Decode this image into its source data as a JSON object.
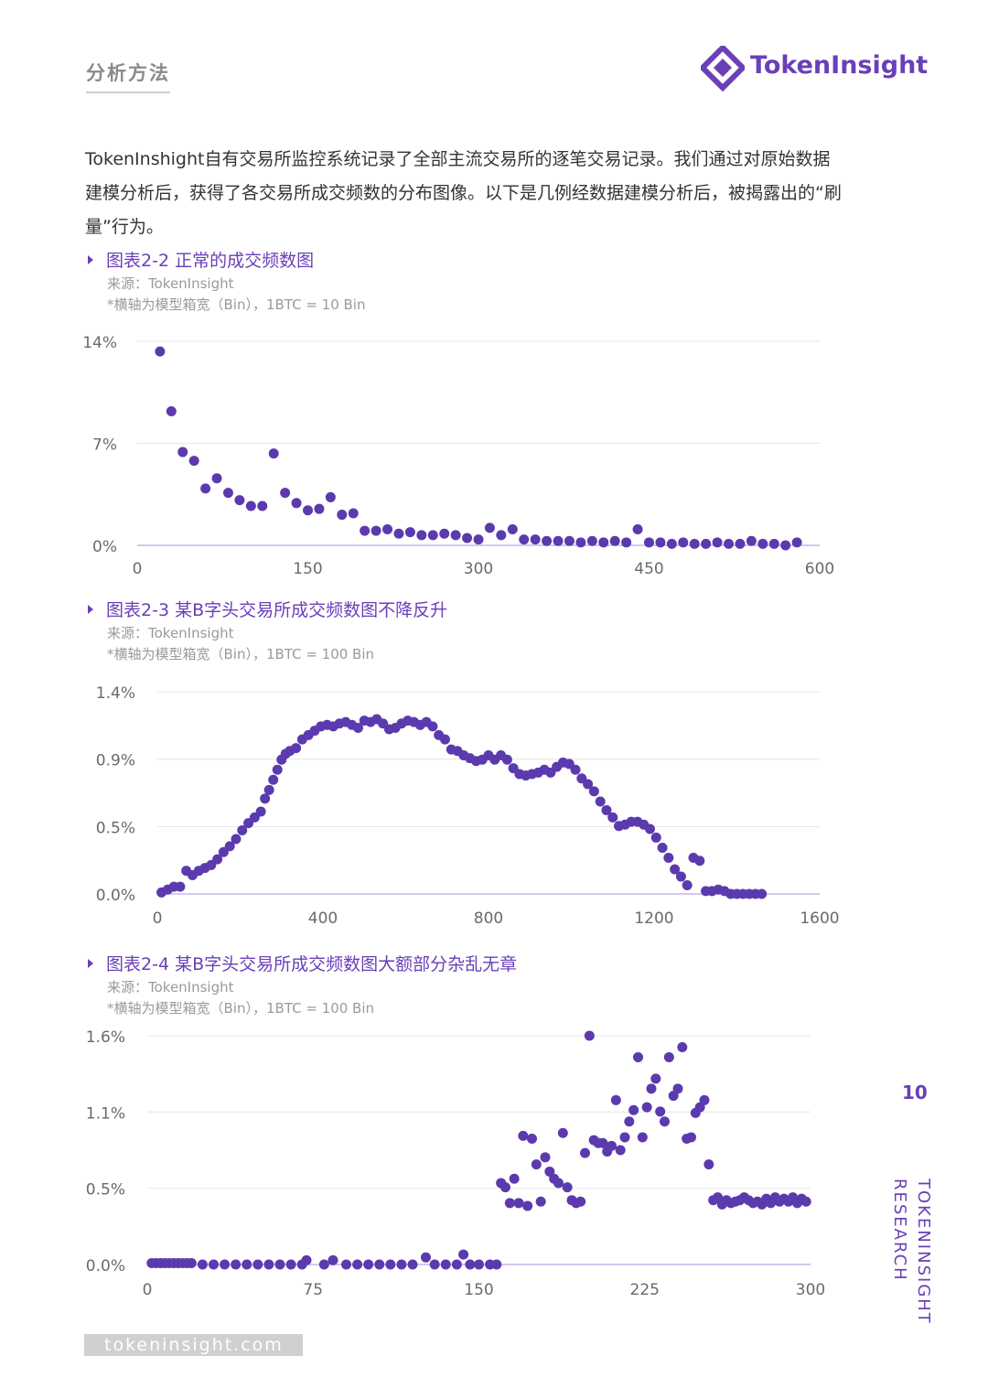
{
  "header": {
    "section_title": "分析方法",
    "logo_text": "TokenInsight",
    "logo_icon": "tokeninsight-diamond-logo-icon"
  },
  "intro_text": "TokenInshight自有交易所监控系统记录了全部主流交易所的逐笔交易记录。我们通过对原始数据建模分析后，获得了各交易所成交频数的分布图像。以下是几例经数据建模分析后，被揭露出的“刷量”行为。",
  "figures": [
    {
      "title": "图表2-2 正常的成交频数图",
      "source": "来源：TokenInsight",
      "note": "*横轴为模型箱宽（Bin），1BTC = 10 Bin"
    },
    {
      "title": "图表2-3 某B字头交易所成交频数图不降反升",
      "source": "来源：TokenInsight",
      "note": "*横轴为模型箱宽（Bin），1BTC = 100 Bin"
    },
    {
      "title": "图表2-4 某B字头交易所成交频数图大额部分杂乱无章",
      "source": "来源：TokenInsight",
      "note": "*横轴为模型箱宽（Bin），1BTC = 100 Bin"
    }
  ],
  "colors": {
    "point": "#5b3aae",
    "accent": "#6a3fb8",
    "grid": "#e6e6e6",
    "axis": "#b9a8e8"
  },
  "chart_data": [
    {
      "type": "scatter",
      "xlim": [
        0,
        600
      ],
      "ylim": [
        0,
        14
      ],
      "xticks": [
        "0",
        "150",
        "300",
        "450",
        "600"
      ],
      "xtick_values": [
        0,
        150,
        300,
        450,
        600
      ],
      "yticks": [
        "0%",
        "7%",
        "14%"
      ],
      "ytick_values": [
        0,
        7,
        14
      ],
      "grid": true,
      "points": [
        [
          20,
          13.3
        ],
        [
          30,
          9.2
        ],
        [
          40,
          6.4
        ],
        [
          50,
          5.8
        ],
        [
          60,
          3.9
        ],
        [
          70,
          4.6
        ],
        [
          80,
          3.6
        ],
        [
          90,
          3.1
        ],
        [
          100,
          2.7
        ],
        [
          110,
          2.7
        ],
        [
          120,
          6.3
        ],
        [
          130,
          3.6
        ],
        [
          140,
          2.9
        ],
        [
          150,
          2.4
        ],
        [
          160,
          2.5
        ],
        [
          170,
          3.3
        ],
        [
          180,
          2.1
        ],
        [
          190,
          2.2
        ],
        [
          200,
          1.0
        ],
        [
          210,
          1.0
        ],
        [
          220,
          1.1
        ],
        [
          230,
          0.8
        ],
        [
          240,
          0.9
        ],
        [
          250,
          0.7
        ],
        [
          260,
          0.7
        ],
        [
          270,
          0.8
        ],
        [
          280,
          0.7
        ],
        [
          290,
          0.5
        ],
        [
          300,
          0.4
        ],
        [
          310,
          1.2
        ],
        [
          320,
          0.7
        ],
        [
          330,
          1.1
        ],
        [
          340,
          0.4
        ],
        [
          350,
          0.4
        ],
        [
          360,
          0.3
        ],
        [
          370,
          0.3
        ],
        [
          380,
          0.3
        ],
        [
          390,
          0.2
        ],
        [
          400,
          0.3
        ],
        [
          410,
          0.2
        ],
        [
          420,
          0.3
        ],
        [
          430,
          0.2
        ],
        [
          440,
          1.1
        ],
        [
          450,
          0.2
        ],
        [
          460,
          0.2
        ],
        [
          470,
          0.1
        ],
        [
          480,
          0.2
        ],
        [
          490,
          0.1
        ],
        [
          500,
          0.1
        ],
        [
          510,
          0.2
        ],
        [
          520,
          0.1
        ],
        [
          530,
          0.1
        ],
        [
          540,
          0.3
        ],
        [
          550,
          0.1
        ],
        [
          560,
          0.1
        ],
        [
          570,
          0.0
        ],
        [
          580,
          0.2
        ]
      ]
    },
    {
      "type": "scatter",
      "xlim": [
        0,
        1600
      ],
      "ylim": [
        0,
        1.4
      ],
      "xticks": [
        "0",
        "400",
        "800",
        "1200",
        "1600"
      ],
      "xtick_values": [
        0,
        400,
        800,
        1200,
        1600
      ],
      "yticks": [
        "0.0%",
        "0.5%",
        "0.9%",
        "1.4%"
      ],
      "ytick_values": [
        0,
        0.466,
        0.933,
        1.4
      ],
      "grid": true,
      "points": [
        [
          10,
          0.01
        ],
        [
          25,
          0.03
        ],
        [
          40,
          0.05
        ],
        [
          55,
          0.05
        ],
        [
          70,
          0.16
        ],
        [
          85,
          0.13
        ],
        [
          100,
          0.16
        ],
        [
          115,
          0.18
        ],
        [
          130,
          0.2
        ],
        [
          145,
          0.24
        ],
        [
          160,
          0.29
        ],
        [
          175,
          0.33
        ],
        [
          190,
          0.38
        ],
        [
          205,
          0.44
        ],
        [
          220,
          0.49
        ],
        [
          235,
          0.53
        ],
        [
          250,
          0.57
        ],
        [
          260,
          0.66
        ],
        [
          270,
          0.72
        ],
        [
          280,
          0.79
        ],
        [
          290,
          0.86
        ],
        [
          300,
          0.93
        ],
        [
          310,
          0.97
        ],
        [
          320,
          0.99
        ],
        [
          335,
          1.01
        ],
        [
          350,
          1.07
        ],
        [
          365,
          1.1
        ],
        [
          380,
          1.13
        ],
        [
          395,
          1.16
        ],
        [
          410,
          1.17
        ],
        [
          425,
          1.16
        ],
        [
          440,
          1.18
        ],
        [
          455,
          1.19
        ],
        [
          470,
          1.17
        ],
        [
          485,
          1.15
        ],
        [
          500,
          1.2
        ],
        [
          515,
          1.19
        ],
        [
          530,
          1.21
        ],
        [
          545,
          1.18
        ],
        [
          560,
          1.14
        ],
        [
          575,
          1.15
        ],
        [
          590,
          1.18
        ],
        [
          605,
          1.2
        ],
        [
          620,
          1.19
        ],
        [
          635,
          1.17
        ],
        [
          650,
          1.19
        ],
        [
          665,
          1.16
        ],
        [
          680,
          1.1
        ],
        [
          695,
          1.07
        ],
        [
          710,
          1.0
        ],
        [
          725,
          0.99
        ],
        [
          740,
          0.96
        ],
        [
          755,
          0.94
        ],
        [
          770,
          0.92
        ],
        [
          785,
          0.93
        ],
        [
          800,
          0.96
        ],
        [
          815,
          0.93
        ],
        [
          830,
          0.96
        ],
        [
          845,
          0.93
        ],
        [
          860,
          0.87
        ],
        [
          875,
          0.83
        ],
        [
          890,
          0.82
        ],
        [
          905,
          0.83
        ],
        [
          920,
          0.84
        ],
        [
          935,
          0.86
        ],
        [
          950,
          0.84
        ],
        [
          965,
          0.88
        ],
        [
          980,
          0.91
        ],
        [
          995,
          0.9
        ],
        [
          1010,
          0.86
        ],
        [
          1025,
          0.8
        ],
        [
          1040,
          0.76
        ],
        [
          1055,
          0.71
        ],
        [
          1070,
          0.64
        ],
        [
          1085,
          0.58
        ],
        [
          1100,
          0.53
        ],
        [
          1115,
          0.47
        ],
        [
          1130,
          0.48
        ],
        [
          1145,
          0.5
        ],
        [
          1160,
          0.5
        ],
        [
          1175,
          0.48
        ],
        [
          1190,
          0.45
        ],
        [
          1205,
          0.39
        ],
        [
          1220,
          0.32
        ],
        [
          1235,
          0.25
        ],
        [
          1250,
          0.17
        ],
        [
          1265,
          0.12
        ],
        [
          1280,
          0.06
        ],
        [
          1295,
          0.25
        ],
        [
          1310,
          0.23
        ],
        [
          1325,
          0.02
        ],
        [
          1340,
          0.02
        ],
        [
          1355,
          0.03
        ],
        [
          1370,
          0.02
        ],
        [
          1385,
          0.0
        ],
        [
          1400,
          0.0
        ],
        [
          1415,
          0.0
        ],
        [
          1430,
          0.0
        ],
        [
          1445,
          0.0
        ],
        [
          1460,
          0.0
        ]
      ]
    },
    {
      "type": "scatter",
      "xlim": [
        0,
        300
      ],
      "ylim": [
        0,
        1.6
      ],
      "xticks": [
        "0",
        "75",
        "150",
        "225",
        "300"
      ],
      "xtick_values": [
        0,
        75,
        150,
        225,
        300
      ],
      "yticks": [
        "0.0%",
        "0.5%",
        "1.1%",
        "1.6%"
      ],
      "ytick_values": [
        0,
        0.533,
        1.067,
        1.6
      ],
      "grid": true,
      "points": [
        [
          2,
          0.01
        ],
        [
          4,
          0.01
        ],
        [
          6,
          0.01
        ],
        [
          8,
          0.01
        ],
        [
          10,
          0.01
        ],
        [
          12,
          0.01
        ],
        [
          14,
          0.01
        ],
        [
          16,
          0.01
        ],
        [
          18,
          0.01
        ],
        [
          20,
          0.01
        ],
        [
          25,
          0.0
        ],
        [
          30,
          0.0
        ],
        [
          35,
          0.0
        ],
        [
          40,
          0.0
        ],
        [
          45,
          0.0
        ],
        [
          50,
          0.0
        ],
        [
          55,
          0.0
        ],
        [
          60,
          0.0
        ],
        [
          65,
          0.0
        ],
        [
          70,
          0.0
        ],
        [
          72,
          0.03
        ],
        [
          80,
          0.0
        ],
        [
          84,
          0.03
        ],
        [
          90,
          0.0
        ],
        [
          95,
          0.0
        ],
        [
          100,
          0.0
        ],
        [
          105,
          0.0
        ],
        [
          110,
          0.0
        ],
        [
          115,
          0.0
        ],
        [
          120,
          0.0
        ],
        [
          126,
          0.05
        ],
        [
          130,
          0.0
        ],
        [
          135,
          0.0
        ],
        [
          140,
          0.0
        ],
        [
          143,
          0.07
        ],
        [
          146,
          0.0
        ],
        [
          150,
          0.0
        ],
        [
          155,
          0.0
        ],
        [
          158,
          0.0
        ],
        [
          160,
          0.57
        ],
        [
          162,
          0.54
        ],
        [
          164,
          0.43
        ],
        [
          166,
          0.6
        ],
        [
          168,
          0.43
        ],
        [
          170,
          0.9
        ],
        [
          172,
          0.41
        ],
        [
          174,
          0.88
        ],
        [
          176,
          0.7
        ],
        [
          178,
          0.44
        ],
        [
          180,
          0.75
        ],
        [
          182,
          0.65
        ],
        [
          184,
          0.6
        ],
        [
          186,
          0.57
        ],
        [
          188,
          0.92
        ],
        [
          190,
          0.54
        ],
        [
          192,
          0.45
        ],
        [
          194,
          0.43
        ],
        [
          196,
          0.44
        ],
        [
          198,
          0.78
        ],
        [
          200,
          1.6
        ],
        [
          202,
          0.87
        ],
        [
          204,
          0.85
        ],
        [
          206,
          0.85
        ],
        [
          208,
          0.79
        ],
        [
          210,
          0.83
        ],
        [
          212,
          1.15
        ],
        [
          214,
          0.8
        ],
        [
          216,
          0.89
        ],
        [
          218,
          1.0
        ],
        [
          220,
          1.08
        ],
        [
          222,
          1.45
        ],
        [
          224,
          0.89
        ],
        [
          226,
          1.1
        ],
        [
          228,
          1.23
        ],
        [
          230,
          1.3
        ],
        [
          232,
          1.07
        ],
        [
          234,
          1.0
        ],
        [
          236,
          1.45
        ],
        [
          238,
          1.18
        ],
        [
          240,
          1.23
        ],
        [
          242,
          1.52
        ],
        [
          244,
          0.88
        ],
        [
          246,
          0.89
        ],
        [
          248,
          1.06
        ],
        [
          250,
          1.1
        ],
        [
          252,
          1.15
        ],
        [
          254,
          0.7
        ],
        [
          256,
          0.45
        ],
        [
          258,
          0.47
        ],
        [
          260,
          0.42
        ],
        [
          262,
          0.45
        ],
        [
          264,
          0.43
        ],
        [
          266,
          0.44
        ],
        [
          268,
          0.45
        ],
        [
          270,
          0.47
        ],
        [
          272,
          0.45
        ],
        [
          274,
          0.43
        ],
        [
          276,
          0.44
        ],
        [
          278,
          0.42
        ],
        [
          280,
          0.46
        ],
        [
          282,
          0.43
        ],
        [
          284,
          0.47
        ],
        [
          286,
          0.44
        ],
        [
          288,
          0.46
        ],
        [
          290,
          0.44
        ],
        [
          292,
          0.47
        ],
        [
          294,
          0.43
        ],
        [
          296,
          0.46
        ],
        [
          298,
          0.44
        ]
      ]
    }
  ],
  "page_number": "10",
  "side_label": "TOKENINSIGHT RESEARCH",
  "footer_url": "tokeninsight.com"
}
